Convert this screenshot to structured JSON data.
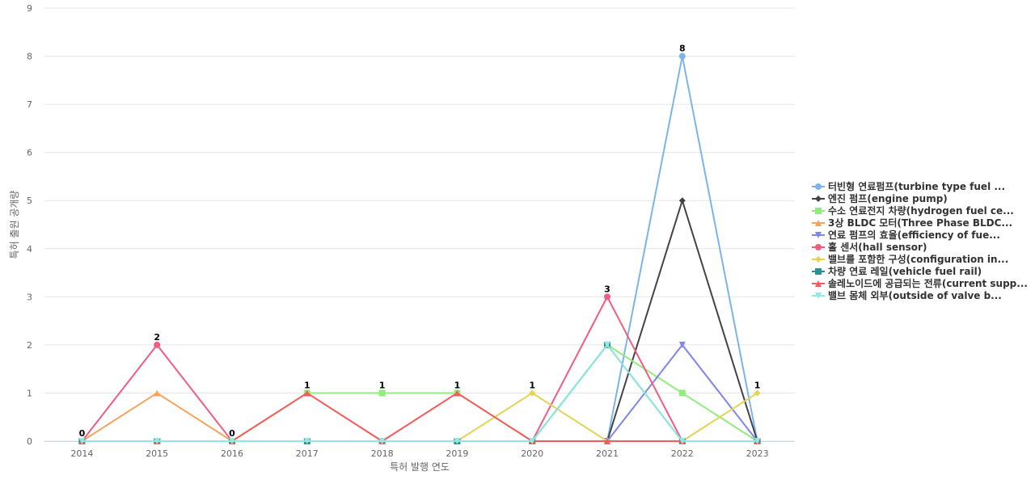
{
  "chart_data": {
    "type": "line",
    "x_label": "특허 발행 연도",
    "y_label": "특허 출원 공개량",
    "categories": [
      "2014",
      "2015",
      "2016",
      "2017",
      "2018",
      "2019",
      "2020",
      "2021",
      "2022",
      "2023"
    ],
    "ylim": [
      0,
      9
    ],
    "yticks": [
      0,
      1,
      2,
      3,
      4,
      5,
      6,
      7,
      8,
      9
    ],
    "grid": true,
    "legend": "right",
    "series": [
      {
        "name": "터빈형 연료펌프(turbine type fuel ...",
        "color": "#7cb5ec",
        "marker": "circle",
        "values": [
          0,
          0,
          0,
          0,
          0,
          0,
          0,
          0,
          8,
          0
        ]
      },
      {
        "name": "엔진 펌프(engine pump)",
        "color": "#434348",
        "marker": "diamond",
        "values": [
          0,
          0,
          0,
          0,
          0,
          0,
          0,
          0,
          5,
          0
        ]
      },
      {
        "name": "수소 연료전지 차량(hydrogen fuel ce...",
        "color": "#90ed7d",
        "marker": "square",
        "values": [
          0,
          0,
          0,
          1,
          1,
          1,
          0,
          2,
          1,
          0
        ]
      },
      {
        "name": "3상 BLDC 모터(Three Phase BLDC...",
        "color": "#f7a35c",
        "marker": "triangle",
        "values": [
          0,
          1,
          0,
          0,
          0,
          0,
          0,
          0,
          0,
          0
        ]
      },
      {
        "name": "연료 펌프의 효율(efficiency of fue...",
        "color": "#8085e9",
        "marker": "triangle-down",
        "values": [
          0,
          0,
          0,
          0,
          0,
          0,
          0,
          0,
          2,
          0
        ]
      },
      {
        "name": "홀 센서(hall sensor)",
        "color": "#f15c80",
        "marker": "circle",
        "values": [
          0,
          2,
          0,
          0,
          0,
          0,
          0,
          3,
          0,
          0
        ]
      },
      {
        "name": "밸브를 포함한 구성(configuration in...",
        "color": "#e4d354",
        "marker": "diamond",
        "values": [
          0,
          0,
          0,
          0,
          0,
          0,
          1,
          0,
          0,
          1
        ]
      },
      {
        "name": "차량 연료 레일(vehicle fuel rail)",
        "color": "#2b908f",
        "marker": "square",
        "values": [
          0,
          0,
          0,
          0,
          0,
          0,
          0,
          2,
          0,
          0
        ]
      },
      {
        "name": "솔레노이드에 공급되는 전류(current supp...",
        "color": "#f45b5b",
        "marker": "triangle",
        "values": [
          0,
          0,
          0,
          1,
          0,
          1,
          0,
          0,
          0,
          0
        ]
      },
      {
        "name": "밸브 몸체 외부(outside of valve b...",
        "color": "#91e8e1",
        "marker": "triangle-down",
        "values": [
          0,
          0,
          0,
          0,
          0,
          0,
          0,
          2,
          0,
          0
        ]
      }
    ]
  }
}
